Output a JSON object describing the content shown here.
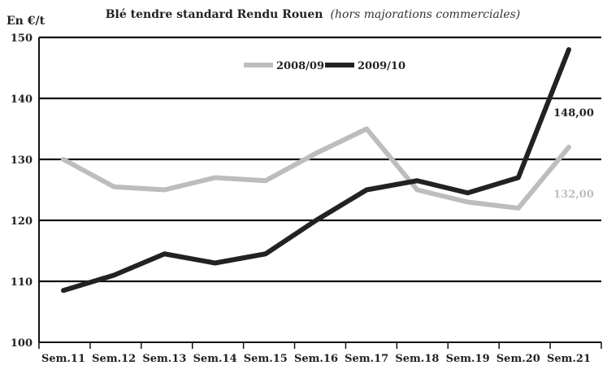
{
  "chart_data": {
    "type": "line",
    "title": "Blé tendre standard Rendu Rouen",
    "subtitle": "(hors majorations commerciales)",
    "ylabel": "En €/t",
    "xlabel": "",
    "categories": [
      "Sem.11",
      "Sem.12",
      "Sem.13",
      "Sem.14",
      "Sem.15",
      "Sem.16",
      "Sem.17",
      "Sem.18",
      "Sem.19",
      "Sem.20",
      "Sem.21"
    ],
    "ylim": [
      100,
      150
    ],
    "yticks": [
      100,
      110,
      120,
      130,
      140,
      150
    ],
    "grid": true,
    "legend_position": "top-center",
    "series": [
      {
        "name": "2008/09",
        "color": "#bdbdbd",
        "values": [
          130,
          125.5,
          125,
          127,
          126.5,
          131,
          135,
          125,
          123,
          122,
          132
        ],
        "end_label": "132,00"
      },
      {
        "name": "2009/10",
        "color": "#222222",
        "values": [
          108.5,
          111,
          114.5,
          113,
          114.5,
          120,
          125,
          126.5,
          124.5,
          127,
          148
        ],
        "end_label": "148,00"
      }
    ]
  }
}
